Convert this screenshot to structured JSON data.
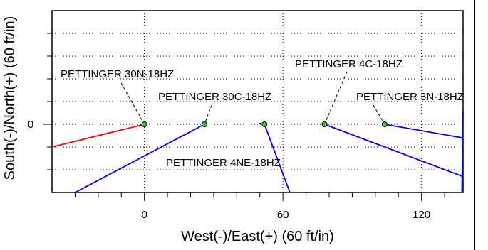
{
  "chart_data": {
    "type": "scatter",
    "title": "",
    "xlabel": "West(-)/East(+) (60 ft/in)",
    "ylabel": "South(-)/North(+) (60 ft/in)",
    "xlim": [
      -40,
      138
    ],
    "ylim": [
      -30,
      50
    ],
    "x_ticks": [
      {
        "value": 0,
        "label": "0"
      },
      {
        "value": 60,
        "label": "60"
      },
      {
        "value": 120,
        "label": "120"
      }
    ],
    "y_ticks": [
      {
        "value": 0,
        "label": "0"
      }
    ],
    "x_minor_ticks": [
      -30,
      -20,
      -10,
      10,
      20,
      30,
      40,
      50,
      70,
      80,
      90,
      100,
      110,
      130
    ],
    "y_minor_ticks": [
      -20,
      -10,
      10,
      20,
      30,
      40
    ],
    "grid": true,
    "wells": [
      {
        "name": "PETTINGER 30N-18HZ",
        "surface": [
          0,
          0
        ],
        "path": [
          [
            0,
            0
          ],
          [
            -40,
            -10
          ]
        ],
        "color": "#ff0000"
      },
      {
        "name": "PETTINGER 30C-18HZ",
        "surface": [
          26,
          0
        ],
        "path": [
          [
            26,
            0
          ],
          [
            -30,
            -30
          ]
        ],
        "color": "#0000ff"
      },
      {
        "name": "PETTINGER 4NE-18HZ",
        "surface": [
          52,
          0
        ],
        "path": [
          [
            52,
            0
          ],
          [
            63,
            -30
          ]
        ],
        "color": "#0000ff"
      },
      {
        "name": "PETTINGER 4C-18HZ",
        "surface": [
          78,
          0
        ],
        "path": [
          [
            78,
            0
          ],
          [
            138,
            -23
          ]
        ],
        "color": "#0000ff"
      },
      {
        "name": "PETTINGER 3N-18HZ",
        "surface": [
          104,
          0
        ],
        "path": [
          [
            104,
            0
          ],
          [
            138,
            -6
          ]
        ],
        "color": "#0000ff"
      },
      {
        "name": "",
        "surface": null,
        "path": [
          [
            138,
            6
          ],
          [
            137.5,
            -30
          ]
        ],
        "color": "#0000ff"
      }
    ],
    "marker_color": "#33cc33"
  }
}
